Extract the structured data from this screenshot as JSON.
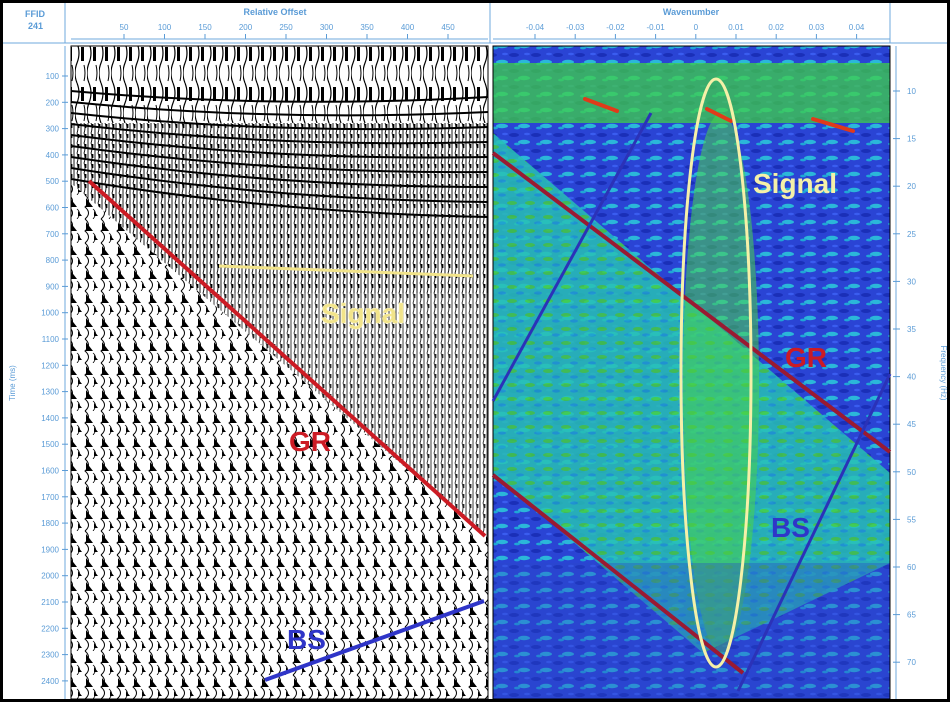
{
  "header": {
    "ffid_label": "FFID",
    "ffid_value": "241",
    "left_title": "Relative Offset",
    "right_title": "Wavenumber"
  },
  "offset_ticks": [
    "50",
    "100",
    "150",
    "200",
    "250",
    "300",
    "350",
    "400",
    "450"
  ],
  "wavenumber_ticks": [
    "-0.04",
    "-0.03",
    "-0.02",
    "-0.01",
    "0",
    "0.01",
    "0.02",
    "0.03",
    "0.04"
  ],
  "time_axis": {
    "label": "Time (ms)",
    "ticks": [
      "100",
      "200",
      "300",
      "400",
      "500",
      "600",
      "700",
      "800",
      "900",
      "1000",
      "1100",
      "1200",
      "1300",
      "1400",
      "1500",
      "1600",
      "1700",
      "1800",
      "1900",
      "2000",
      "2100",
      "2200",
      "2300",
      "2400"
    ]
  },
  "frequency_axis": {
    "label": "Frequency (Hz)",
    "ticks": [
      "10",
      "15",
      "20",
      "25",
      "30",
      "35",
      "40",
      "45",
      "50",
      "55",
      "60",
      "65",
      "70"
    ]
  },
  "annotations": {
    "signal_left": "Signal",
    "gr_left": "GR",
    "bs_left": "BS",
    "signal_right": "Signal",
    "gr_right": "GR",
    "bs_right": "BS"
  },
  "colors": {
    "signal": "#f2e48a",
    "ground_roll": "#cc1b24",
    "backscatter": "#2f35c8",
    "axis_text": "#5a9bd6",
    "spectrum_low": "#1a2fb8",
    "spectrum_mid": "#19c7c0",
    "spectrum_high": "#3ed03a",
    "spectrum_peak": "#e03a1a"
  }
}
